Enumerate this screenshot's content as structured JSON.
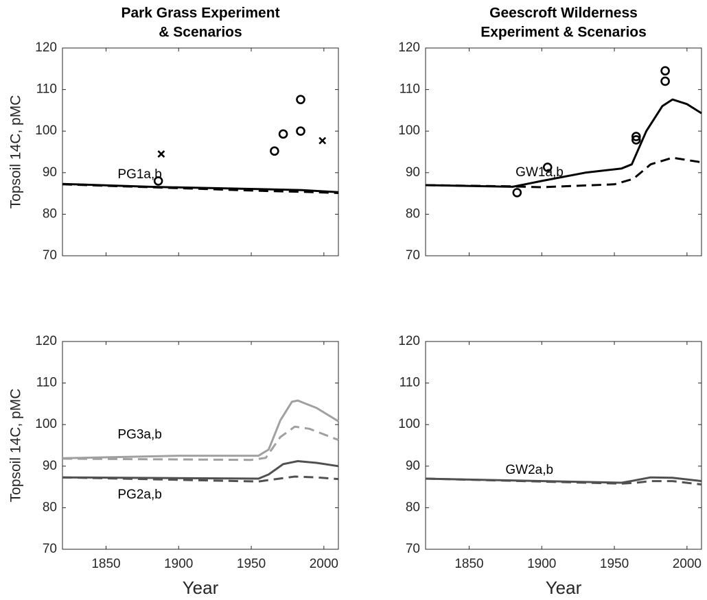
{
  "chart_data": [
    {
      "type": "line",
      "title": [
        "Park Grass Experiment",
        "& Scenarios"
      ],
      "ylabel": "Topsoil 14C, pMC",
      "xlim": [
        1820,
        2010
      ],
      "ylim": [
        70,
        120
      ],
      "xticks": [
        1850,
        1900,
        1950,
        2000
      ],
      "xticklabels": false,
      "yticks": [
        70,
        80,
        90,
        100,
        110,
        120
      ],
      "annotations": [
        "PG1a,b"
      ],
      "series": [
        {
          "color": "#000000",
          "dash": false,
          "x": [
            1820,
            1880,
            1960,
            1985,
            2010
          ],
          "values": [
            87.3,
            86.6,
            86,
            85.8,
            85.3
          ]
        },
        {
          "color": "#000000",
          "dash": true,
          "x": [
            1820,
            1880,
            1960,
            1985,
            2010
          ],
          "values": [
            87.2,
            86.5,
            85.6,
            85.4,
            85.1
          ]
        },
        {
          "color": "#000000",
          "marker": "o",
          "x": [
            1886,
            1966,
            1972,
            1984,
            1984
          ],
          "values": [
            88,
            95.2,
            99.3,
            107.6,
            100
          ]
        },
        {
          "color": "#000000",
          "marker": "x",
          "x": [
            1888,
            1999
          ],
          "values": [
            94.5,
            97.7
          ]
        }
      ]
    },
    {
      "type": "line",
      "title": [
        "Geescroft Wilderness",
        "Experiment & Scenarios"
      ],
      "xlim": [
        1820,
        2010
      ],
      "ylim": [
        70,
        120
      ],
      "xticks": [
        1850,
        1900,
        1950,
        2000
      ],
      "xticklabels": false,
      "yticks": [
        70,
        80,
        90,
        100,
        110,
        120
      ],
      "annotations": [
        "GW1a,b"
      ],
      "series": [
        {
          "color": "#000000",
          "dash": false,
          "x": [
            1820,
            1880,
            1900,
            1930,
            1955,
            1962,
            1972,
            1983,
            1990,
            2000,
            2010
          ],
          "values": [
            87,
            86.6,
            88,
            90,
            91,
            92,
            100,
            106,
            107.6,
            106.5,
            104.3
          ]
        },
        {
          "color": "#000000",
          "dash": true,
          "x": [
            1820,
            1880,
            1900,
            1950,
            1963,
            1975,
            1990,
            2010
          ],
          "values": [
            87,
            86.7,
            86.5,
            87.2,
            88.5,
            92,
            93.6,
            92.5
          ]
        },
        {
          "color": "#000000",
          "marker": "o",
          "x": [
            1883,
            1904,
            1965,
            1965,
            1985,
            1985
          ],
          "values": [
            85.2,
            91.3,
            98.7,
            97.9,
            114.5,
            112
          ]
        }
      ]
    },
    {
      "type": "line",
      "ylabel": "Topsoil 14C, pMC",
      "xlabel": "Year",
      "xlim": [
        1820,
        2010
      ],
      "ylim": [
        70,
        120
      ],
      "xticks": [
        1850,
        1900,
        1950,
        2000
      ],
      "xticklabels": true,
      "yticks": [
        70,
        80,
        90,
        100,
        110,
        120
      ],
      "annotations": [
        "PG3a,b",
        "PG2a,b"
      ],
      "series": [
        {
          "color": "#a0a0a0",
          "dash": false,
          "x": [
            1820,
            1900,
            1955,
            1962,
            1970,
            1978,
            1982,
            1995,
            2010
          ],
          "values": [
            91.9,
            92.5,
            92.5,
            94,
            101,
            105.5,
            105.8,
            104,
            100.8
          ]
        },
        {
          "color": "#a0a0a0",
          "dash": true,
          "x": [
            1820,
            1950,
            1960,
            1970,
            1980,
            1990,
            2010
          ],
          "values": [
            91.8,
            91.5,
            92,
            97,
            99.5,
            99,
            96.3
          ]
        },
        {
          "color": "#505050",
          "dash": false,
          "x": [
            1820,
            1955,
            1962,
            1972,
            1982,
            1995,
            2010
          ],
          "values": [
            87.3,
            87,
            88,
            90.5,
            91.2,
            90.8,
            90
          ]
        },
        {
          "color": "#505050",
          "dash": true,
          "x": [
            1820,
            1955,
            1965,
            1980,
            1995,
            2010
          ],
          "values": [
            87.3,
            86.3,
            86.8,
            87.5,
            87.3,
            86.9
          ]
        }
      ]
    },
    {
      "type": "line",
      "xlabel": "Year",
      "xlim": [
        1820,
        2010
      ],
      "ylim": [
        70,
        120
      ],
      "xticks": [
        1850,
        1900,
        1950,
        2000
      ],
      "xticklabels": true,
      "yticks": [
        70,
        80,
        90,
        100,
        110,
        120
      ],
      "annotations": [
        "GW2a,b"
      ],
      "series": [
        {
          "color": "#505050",
          "dash": false,
          "x": [
            1820,
            1955,
            1963,
            1975,
            1990,
            2010
          ],
          "values": [
            87,
            86,
            86.5,
            87.3,
            87.2,
            86.4
          ]
        },
        {
          "color": "#505050",
          "dash": true,
          "x": [
            1820,
            1955,
            1965,
            1975,
            1990,
            2010
          ],
          "values": [
            87,
            85.8,
            86,
            86.4,
            86.4,
            85.6
          ]
        }
      ]
    }
  ]
}
